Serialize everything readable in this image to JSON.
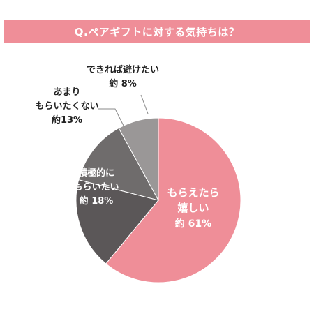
{
  "title": "Q.ペアギフトに対する気持ちは？",
  "colors": {
    "title_bg": "#ef8e98",
    "slice_pink": "#ef8e98",
    "slice_dark": "#5b5758",
    "slice_mid": "#6f6c6c",
    "slice_light": "#9a9797",
    "label_dark": "#222222",
    "label_white": "#ffffff",
    "leader": "#888888"
  },
  "chart_data": {
    "type": "pie",
    "slices": [
      {
        "label_lines": [
          "もらえたら",
          "嬉しい"
        ],
        "value_label": "約 61%",
        "value": 61,
        "color": "#ef8e98"
      },
      {
        "label_lines": [
          "積極的に",
          "もらいたい"
        ],
        "value_label": "約 18%",
        "value": 18,
        "color": "#5b5758"
      },
      {
        "label_lines": [
          "あまり",
          "もらいたくない"
        ],
        "value_label": "約13%",
        "value": 13,
        "color": "#6f6c6c"
      },
      {
        "label_lines": [
          "できれば避けたい"
        ],
        "value_label": "約 8%",
        "value": 8,
        "color": "#9a9797"
      }
    ]
  }
}
